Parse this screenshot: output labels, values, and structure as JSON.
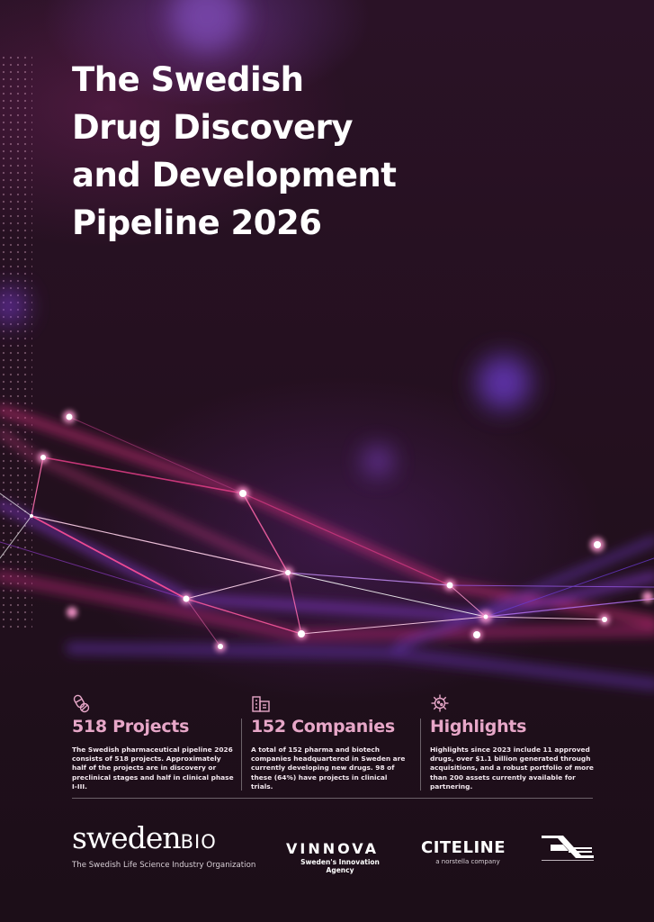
{
  "title_lines": [
    "The Swedish",
    "Drug Discovery",
    "and Development",
    "Pipeline 2026"
  ],
  "stats": [
    {
      "icon": "pill-capsule-icon",
      "heading": "518 Projects",
      "body": "The Swedish pharmaceutical pipeline 2026 consists of 518 projects. Approximately half of the projects are in discovery or preclinical stages and half in clinical phase I-III."
    },
    {
      "icon": "company-buildings-icon",
      "heading": "152 Companies",
      "body": "A total of 152 pharma and biotech companies headquartered in Sweden are currently developing new drugs. 98 of these (64%) have projects in clinical trials."
    },
    {
      "icon": "virus-icon",
      "heading": "Highlights",
      "body": "Highlights since 2023 include 11 approved drugs, over $1.1 billion generated through acquisitions, and a robust portfolio of more than 200 assets currently available for partnering."
    }
  ],
  "logos": {
    "swedenbio": {
      "word": "sweden",
      "suffix": "BIO",
      "tagline": "The Swedish Life Science Industry Organization"
    },
    "vinnova": {
      "word": "VINNOVA",
      "tagline": "Sweden's Innovation Agency"
    },
    "citeline": {
      "word": "CITELINE",
      "tagline": "a norstella company"
    },
    "business_sweden": {
      "icon": "business-sweden-logo-icon"
    }
  },
  "colors": {
    "accent_pink": "#e7a7c8",
    "background": "#1e0f1a",
    "network_magenta": "#e0307a",
    "network_violet": "#7a3ad0"
  }
}
